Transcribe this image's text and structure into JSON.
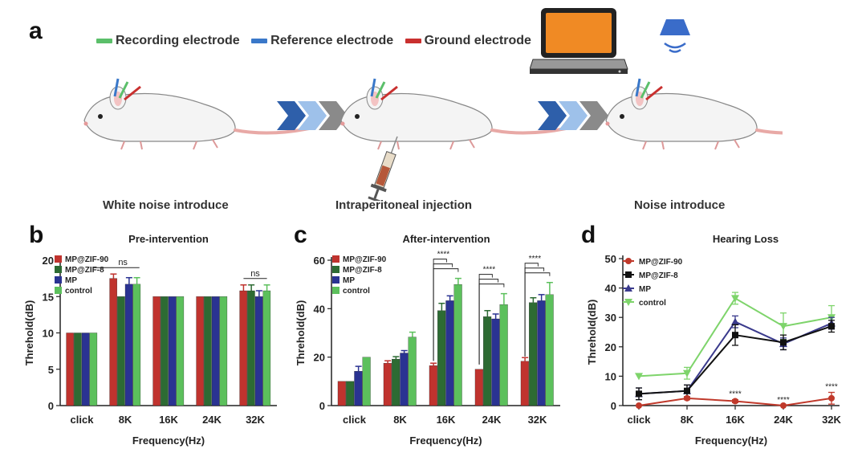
{
  "panel_a": {
    "letter": "a",
    "legend": [
      {
        "label": "Recording electrode",
        "color": "#5bbf6a"
      },
      {
        "label": "Reference electrode",
        "color": "#3a78c9"
      },
      {
        "label": "Ground electrode",
        "color": "#c9302f"
      }
    ],
    "steps": [
      "White noise introduce",
      "Intraperitoneal injection",
      "Noise introduce"
    ]
  },
  "colors": {
    "mpzif90": "#c0332e",
    "mpzif8": "#2d6b33",
    "mp": "#2a3392",
    "control": "#5cc05c",
    "d_zif8": "#111111",
    "d_mp": "#3a3a8c",
    "d_control": "#7ed46b",
    "d_zif90": "#c0392b"
  },
  "chart_data": [
    {
      "letter": "b",
      "type": "bar",
      "title": "Pre-intervention",
      "xlabel": "Frequency(Hz)",
      "ylabel": "Threhold(dB)",
      "ylim": [
        0,
        20
      ],
      "yticks": [
        "0",
        "5",
        "10",
        "15",
        "20"
      ],
      "categories": [
        "click",
        "8K",
        "16K",
        "24K",
        "32K"
      ],
      "series": [
        {
          "name": "MP@ZIF-90",
          "values": [
            10,
            17.5,
            15,
            15,
            15.8
          ],
          "err": [
            0,
            0.6,
            0,
            0,
            0.8
          ]
        },
        {
          "name": "MP@ZIF-8",
          "values": [
            10,
            15,
            15,
            15,
            15.8
          ],
          "err": [
            0,
            0,
            0,
            0,
            0.8
          ]
        },
        {
          "name": "MP",
          "values": [
            10,
            16.7,
            15,
            15,
            15
          ],
          "err": [
            0,
            0.9,
            0,
            0,
            0.8
          ]
        },
        {
          "name": "control",
          "values": [
            10,
            16.7,
            15,
            15,
            15.8
          ],
          "err": [
            0,
            0.9,
            0,
            0,
            0.8
          ]
        }
      ],
      "annotations": [
        {
          "text": "ns",
          "category": "8K"
        },
        {
          "text": "ns",
          "category": "32K"
        }
      ]
    },
    {
      "letter": "c",
      "type": "bar",
      "title": "After-intervention",
      "xlabel": "Frequency(Hz)",
      "ylabel": "Threhold(dB)",
      "ylim": [
        0,
        60
      ],
      "yticks": [
        "0",
        "20",
        "40",
        "60"
      ],
      "categories": [
        "click",
        "8K",
        "16K",
        "24K",
        "32K"
      ],
      "series": [
        {
          "name": "MP@ZIF-90",
          "values": [
            10,
            17.5,
            16.5,
            15,
            18.3
          ],
          "err": [
            0,
            1,
            1,
            0,
            1.5
          ]
        },
        {
          "name": "MP@ZIF-8",
          "values": [
            10,
            19.2,
            39.2,
            36.7,
            42.5
          ],
          "err": [
            0,
            1,
            3,
            2.5,
            2
          ]
        },
        {
          "name": "MP",
          "values": [
            14.2,
            21.7,
            43.3,
            35.8,
            43.3
          ],
          "err": [
            2,
            1,
            2,
            2,
            2.5
          ]
        },
        {
          "name": "control",
          "values": [
            20,
            28.3,
            50,
            41.7,
            45.8
          ],
          "err": [
            0,
            2,
            2.5,
            4.5,
            5
          ]
        }
      ],
      "annotations": [
        {
          "text": "****",
          "category": "16K"
        },
        {
          "text": "****",
          "category": "24K"
        },
        {
          "text": "****",
          "category": "32K"
        }
      ]
    },
    {
      "letter": "d",
      "type": "line",
      "title": "Hearing Loss",
      "xlabel": "Frequency(Hz)",
      "ylabel": "Threhold(dB)",
      "ylim": [
        0,
        50
      ],
      "yticks": [
        "0",
        "10",
        "20",
        "30",
        "40",
        "50"
      ],
      "categories": [
        "click",
        "8K",
        "16K",
        "24K",
        "32K"
      ],
      "series": [
        {
          "name": "MP@ZIF-90",
          "values": [
            0,
            2.5,
            1.5,
            0,
            2.5
          ],
          "err": [
            0,
            0.5,
            0.5,
            0,
            2
          ]
        },
        {
          "name": "MP@ZIF-8",
          "values": [
            4,
            5,
            24,
            21.5,
            27
          ],
          "err": [
            2,
            2,
            3.5,
            2.5,
            2
          ]
        },
        {
          "name": "MP",
          "values": [
            4,
            5,
            28.5,
            21,
            28
          ],
          "err": [
            2,
            2,
            2,
            2,
            2
          ]
        },
        {
          "name": "control",
          "values": [
            10,
            11,
            36.5,
            27,
            30
          ],
          "err": [
            0,
            2,
            2,
            4.5,
            4
          ]
        }
      ],
      "annotations": [
        {
          "text": "****",
          "category": "16K"
        },
        {
          "text": "****",
          "category": "24K"
        },
        {
          "text": "****",
          "category": "32K"
        }
      ]
    }
  ]
}
